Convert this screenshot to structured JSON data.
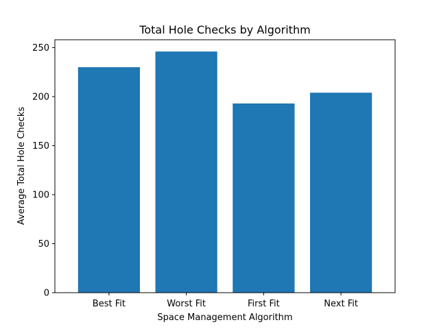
{
  "chart_data": {
    "type": "bar",
    "title": "Total Hole Checks by Algorithm",
    "xlabel": "Space Management Algorithm",
    "ylabel": "Average Total Hole Checks",
    "categories": [
      "Best Fit",
      "Worst Fit",
      "First Fit",
      "Next Fit"
    ],
    "values": [
      230,
      246,
      193,
      204
    ],
    "ylim": [
      0,
      258
    ],
    "yticks": [
      0,
      50,
      100,
      150,
      200,
      250
    ],
    "grid": false,
    "bar_color": "#1f77b4"
  }
}
